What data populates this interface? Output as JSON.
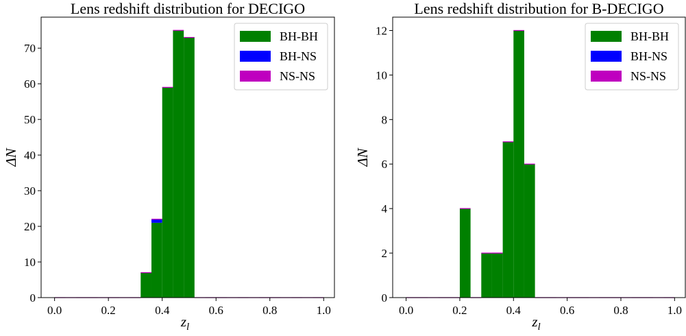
{
  "chart_data": [
    {
      "type": "bar",
      "title": "Lens redshift distribution for DECIGO",
      "xlabel": "z_l",
      "ylabel": "ΔN",
      "xlim": [
        -0.05,
        1.04
      ],
      "ylim": [
        0,
        78.7
      ],
      "xticks": [
        0.0,
        0.2,
        0.4,
        0.6,
        0.8,
        1.0
      ],
      "xtick_labels": [
        "0.0",
        "0.2",
        "0.4",
        "0.6",
        "0.8",
        "1.0"
      ],
      "yticks": [
        0,
        10,
        20,
        30,
        40,
        50,
        60,
        70
      ],
      "ytick_labels": [
        "0",
        "10",
        "20",
        "30",
        "40",
        "50",
        "60",
        "70"
      ],
      "bin_edges": [
        0.0,
        0.04,
        0.08,
        0.12,
        0.16,
        0.2,
        0.24,
        0.28,
        0.32,
        0.36,
        0.4,
        0.44,
        0.48,
        0.52,
        0.56,
        0.6,
        0.64,
        0.68,
        0.72,
        0.76,
        0.8,
        0.84,
        0.88,
        0.92,
        0.96,
        1.0
      ],
      "stacked": true,
      "series": [
        {
          "name": "BH-BH",
          "color": "#008000",
          "values": [
            0,
            0,
            0,
            0,
            0,
            0,
            0,
            0,
            7,
            21,
            59,
            75,
            73,
            0,
            0,
            0,
            0,
            0,
            0,
            0,
            0,
            0,
            0,
            0,
            0
          ]
        },
        {
          "name": "BH-NS",
          "color": "#0000ff",
          "values": [
            0,
            0,
            0,
            0,
            0,
            0,
            0,
            0,
            0,
            1,
            0,
            0,
            0,
            0,
            0,
            0,
            0,
            0,
            0,
            0,
            0,
            0,
            0,
            0,
            0
          ]
        },
        {
          "name": "NS-NS",
          "color": "#bf00bf",
          "values": [
            0,
            0,
            0,
            0,
            0,
            0,
            0,
            0,
            0,
            0,
            0,
            0,
            0,
            0,
            0,
            0,
            0,
            0,
            0,
            0,
            0,
            0,
            0,
            0,
            0
          ]
        }
      ],
      "legend": "top-right"
    },
    {
      "type": "bar",
      "title": "Lens redshift distribution for B-DECIGO",
      "xlabel": "z_l",
      "ylabel": "ΔN",
      "xlim": [
        -0.05,
        1.04
      ],
      "ylim": [
        0,
        12.6
      ],
      "xticks": [
        0.0,
        0.2,
        0.4,
        0.6,
        0.8,
        1.0
      ],
      "xtick_labels": [
        "0.0",
        "0.2",
        "0.4",
        "0.6",
        "0.8",
        "1.0"
      ],
      "yticks": [
        0,
        2,
        4,
        6,
        8,
        10,
        12
      ],
      "ytick_labels": [
        "0",
        "2",
        "4",
        "6",
        "8",
        "10",
        "12"
      ],
      "bin_edges": [
        0.0,
        0.04,
        0.08,
        0.12,
        0.16,
        0.2,
        0.24,
        0.28,
        0.32,
        0.36,
        0.4,
        0.44,
        0.48,
        0.52,
        0.56,
        0.6,
        0.64,
        0.68,
        0.72,
        0.76,
        0.8,
        0.84,
        0.88,
        0.92,
        0.96,
        1.0
      ],
      "stacked": true,
      "series": [
        {
          "name": "BH-BH",
          "color": "#008000",
          "values": [
            0,
            0,
            0,
            0,
            0,
            4,
            0,
            2,
            2,
            7,
            12,
            6,
            0,
            0,
            0,
            0,
            0,
            0,
            0,
            0,
            0,
            0,
            0,
            0,
            0
          ]
        },
        {
          "name": "BH-NS",
          "color": "#0000ff",
          "values": [
            0,
            0,
            0,
            0,
            0,
            0,
            0,
            0,
            0,
            0,
            0,
            0,
            0,
            0,
            0,
            0,
            0,
            0,
            0,
            0,
            0,
            0,
            0,
            0,
            0
          ]
        },
        {
          "name": "NS-NS",
          "color": "#bf00bf",
          "values": [
            0,
            0,
            0,
            0,
            0,
            0,
            0,
            0,
            0,
            0,
            0,
            0,
            0,
            0,
            0,
            0,
            0,
            0,
            0,
            0,
            0,
            0,
            0,
            0,
            0
          ]
        }
      ],
      "legend": "top-right"
    }
  ]
}
